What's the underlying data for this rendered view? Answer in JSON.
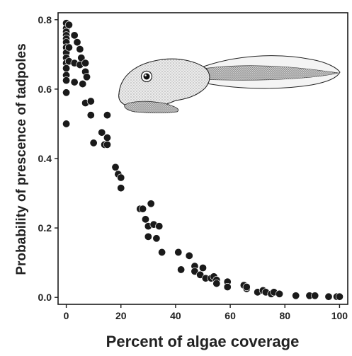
{
  "chart_data": {
    "type": "scatter",
    "title": "",
    "xlabel": "Percent of algae coverage",
    "ylabel": "Probability of prescence of tadpoles",
    "xlim": [
      -3,
      103
    ],
    "ylim": [
      -0.02,
      0.82
    ],
    "xticks": [
      "0",
      "20",
      "40",
      "60",
      "80",
      "100"
    ],
    "yticks": [
      "0.0",
      "0.2",
      "0.4",
      "0.6",
      "0.8"
    ],
    "grid": false,
    "legend": "none",
    "marker_color": "#1a1a1a",
    "illustration": "tadpole-illustration",
    "points": [
      [
        0,
        0.79
      ],
      [
        0,
        0.775
      ],
      [
        0,
        0.765
      ],
      [
        0,
        0.755
      ],
      [
        0,
        0.745
      ],
      [
        0,
        0.735
      ],
      [
        0,
        0.72
      ],
      [
        0,
        0.705
      ],
      [
        0,
        0.69
      ],
      [
        0,
        0.675
      ],
      [
        0,
        0.66
      ],
      [
        0,
        0.64
      ],
      [
        0,
        0.625
      ],
      [
        0,
        0.59
      ],
      [
        0,
        0.5
      ],
      [
        1,
        0.785
      ],
      [
        1,
        0.72
      ],
      [
        1,
        0.68
      ],
      [
        3,
        0.755
      ],
      [
        3,
        0.755
      ],
      [
        3,
        0.675
      ],
      [
        3,
        0.62
      ],
      [
        4,
        0.735
      ],
      [
        5,
        0.715
      ],
      [
        5,
        0.67
      ],
      [
        5.5,
        0.69
      ],
      [
        6,
        0.615
      ],
      [
        7,
        0.675
      ],
      [
        7,
        0.65
      ],
      [
        7.5,
        0.635
      ],
      [
        7,
        0.56
      ],
      [
        9,
        0.565
      ],
      [
        9,
        0.525
      ],
      [
        10,
        0.445
      ],
      [
        13,
        0.475
      ],
      [
        14,
        0.44
      ],
      [
        15,
        0.525
      ],
      [
        15,
        0.44
      ],
      [
        15,
        0.46
      ],
      [
        18,
        0.375
      ],
      [
        19,
        0.355
      ],
      [
        20,
        0.345
      ],
      [
        20,
        0.315
      ],
      [
        27,
        0.255
      ],
      [
        28,
        0.255
      ],
      [
        29,
        0.225
      ],
      [
        30,
        0.205
      ],
      [
        30,
        0.175
      ],
      [
        31,
        0.27
      ],
      [
        32,
        0.21
      ],
      [
        33,
        0.17
      ],
      [
        34,
        0.205
      ],
      [
        35,
        0.13
      ],
      [
        41,
        0.13
      ],
      [
        42,
        0.08
      ],
      [
        45,
        0.12
      ],
      [
        47,
        0.09
      ],
      [
        47,
        0.075
      ],
      [
        49,
        0.065
      ],
      [
        50,
        0.085
      ],
      [
        51,
        0.055
      ],
      [
        53,
        0.055
      ],
      [
        54,
        0.06
      ],
      [
        55,
        0.05
      ],
      [
        55,
        0.04
      ],
      [
        59,
        0.045
      ],
      [
        59,
        0.03
      ],
      [
        65,
        0.035
      ],
      [
        66,
        0.025
      ],
      [
        66,
        0.03
      ],
      [
        70,
        0.015
      ],
      [
        72,
        0.02
      ],
      [
        73,
        0.015
      ],
      [
        75,
        0.01
      ],
      [
        76,
        0.015
      ],
      [
        78,
        0.01
      ],
      [
        84,
        0.005
      ],
      [
        89,
        0.005
      ],
      [
        91,
        0.005
      ],
      [
        96,
        0.002
      ],
      [
        99,
        0.002
      ],
      [
        100,
        0.002
      ]
    ]
  }
}
